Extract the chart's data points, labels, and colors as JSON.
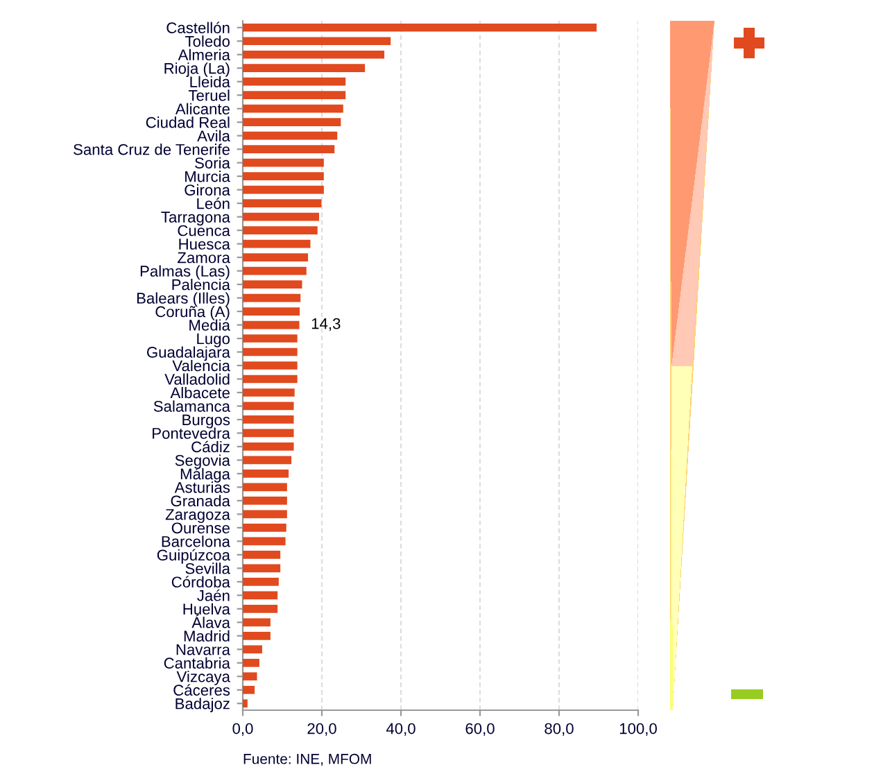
{
  "chart_data": {
    "type": "bar",
    "orientation": "horizontal",
    "categories": [
      "Castellón",
      "Toledo",
      "Almeria",
      "Rioja (La)",
      "Lleida",
      "Teruel",
      "Alicante",
      "Ciudad Real",
      "Avila",
      "Santa Cruz de Tenerife",
      "Soria",
      "Murcia",
      "Girona",
      "León",
      "Tarragona",
      "Cuenca",
      "Huesca",
      "Zamora",
      "Palmas (Las)",
      "Palencia",
      "Balears (Illes)",
      "Coruña (A)",
      "Media",
      "Lugo",
      "Guadalajara",
      "Valencia",
      "Valladolid",
      "Albacete",
      "Salamanca",
      "Burgos",
      "Pontevedra",
      "Cádiz",
      "Segovia",
      "Málaga",
      "Asturias",
      "Granada",
      "Zaragoza",
      "Ourense",
      "Barcelona",
      "Guipúzcoa",
      "Sevilla",
      "Córdoba",
      "Jaén",
      "Huelva",
      "Álava",
      "Madrid",
      "Navarra",
      "Cantabria",
      "Vizcaya",
      "Cáceres",
      "Badajoz"
    ],
    "values": [
      89.5,
      37.4,
      35.8,
      30.9,
      26.0,
      26.0,
      25.4,
      24.8,
      23.9,
      23.2,
      20.5,
      20.5,
      20.5,
      19.9,
      19.3,
      18.9,
      17.1,
      16.5,
      16.1,
      15.0,
      14.6,
      14.4,
      14.3,
      13.8,
      13.8,
      13.8,
      13.8,
      13.1,
      12.9,
      12.9,
      12.9,
      12.9,
      12.3,
      11.6,
      11.2,
      11.2,
      11.2,
      11.0,
      10.8,
      9.5,
      9.5,
      9.1,
      8.8,
      8.8,
      7.0,
      7.0,
      4.9,
      4.2,
      3.6,
      3.0,
      1.2
    ],
    "value_labels": [
      null,
      null,
      null,
      null,
      null,
      null,
      null,
      null,
      null,
      null,
      null,
      null,
      null,
      null,
      null,
      null,
      null,
      null,
      null,
      null,
      null,
      null,
      "14,3",
      null,
      null,
      null,
      null,
      null,
      null,
      null,
      null,
      null,
      null,
      null,
      null,
      null,
      null,
      null,
      null,
      null,
      null,
      null,
      null,
      null,
      null,
      null,
      null,
      null,
      null,
      null,
      null
    ],
    "color": "#e04a1e",
    "xlim": [
      0,
      100
    ],
    "xticks": [
      {
        "value": 0,
        "label": "0,0"
      },
      {
        "value": 20,
        "label": "20,0"
      },
      {
        "value": 40,
        "label": "40,0"
      },
      {
        "value": 60,
        "label": "60,0"
      },
      {
        "value": 80,
        "label": "80,0"
      },
      {
        "value": 100,
        "label": "100,0"
      }
    ],
    "grid": "x",
    "annotations": [
      "Fuente: INE, MFOM"
    ]
  }
}
